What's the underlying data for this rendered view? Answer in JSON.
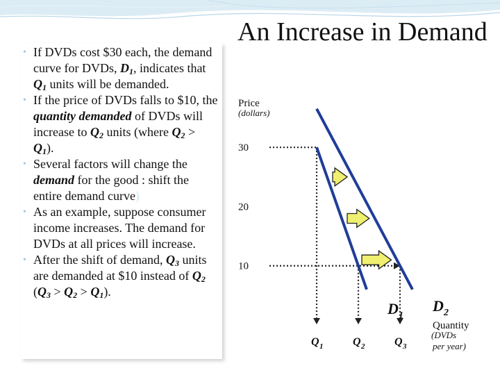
{
  "title": "An Increase in Demand",
  "bullets": [
    {
      "parts": [
        {
          "t": "If DVDs cost $30 each, the demand curve for DVDs, "
        },
        {
          "t": "D",
          "i": true,
          "b": true
        },
        {
          "t": "1",
          "sub": true,
          "i": true,
          "b": true
        },
        {
          "t": ", indicates that "
        },
        {
          "t": "Q",
          "i": true,
          "b": true
        },
        {
          "t": "1",
          "sub": true,
          "i": true,
          "b": true
        },
        {
          "t": " units will be demanded."
        }
      ]
    },
    {
      "parts": [
        {
          "t": "If the price of DVDs falls to $10, the "
        },
        {
          "t": "quantity demanded",
          "i": true,
          "b": true
        },
        {
          "t": " of DVDs will increase to "
        },
        {
          "t": "Q",
          "i": true,
          "b": true
        },
        {
          "t": "2",
          "sub": true,
          "i": true,
          "b": true
        },
        {
          "t": " units (where "
        },
        {
          "t": "Q",
          "i": true,
          "b": true
        },
        {
          "t": "2",
          "sub": true,
          "i": true,
          "b": true
        },
        {
          "t": " > "
        },
        {
          "t": "Q",
          "i": true,
          "b": true
        },
        {
          "t": "1",
          "sub": true,
          "i": true,
          "b": true
        },
        {
          "t": ")."
        }
      ]
    },
    {
      "parts": [
        {
          "t": "Several factors will change the "
        },
        {
          "t": "demand",
          "i": true,
          "b": true
        },
        {
          "t": " for the good : shift the entire demand curve"
        },
        {
          "t": ")",
          "ghost": true
        }
      ]
    },
    {
      "parts": [
        {
          "t": "As an example, suppose consumer income increases. The demand for DVDs at all prices will increase."
        }
      ]
    },
    {
      "parts": [
        {
          "t": "After the shift of demand, "
        },
        {
          "t": "Q",
          "i": true,
          "b": true
        },
        {
          "t": "3",
          "sub": true,
          "i": true,
          "b": true
        },
        {
          "t": " units are demanded at $10 instead of "
        },
        {
          "t": "Q",
          "i": true,
          "b": true
        },
        {
          "t": "2",
          "sub": true,
          "i": true,
          "b": true
        },
        {
          "t": " ("
        },
        {
          "t": "Q",
          "i": true,
          "b": true
        },
        {
          "t": "3",
          "sub": true,
          "i": true,
          "b": true
        },
        {
          "t": " > "
        },
        {
          "t": "Q",
          "i": true,
          "b": true
        },
        {
          "t": "2",
          "sub": true,
          "i": true,
          "b": true
        },
        {
          "t": " > "
        },
        {
          "t": "Q",
          "i": true,
          "b": true
        },
        {
          "t": "1",
          "sub": true,
          "i": true,
          "b": true
        },
        {
          "t": ")."
        }
      ]
    }
  ],
  "chart_data": {
    "type": "line",
    "ylabel": "Price",
    "ylabel_unit": "(dollars)",
    "xlabel": "Quantity",
    "xlabel_unit_lines": [
      "(DVDs",
      "per year)"
    ],
    "y_ticks": [
      "30",
      "20",
      "10"
    ],
    "y_tick_values": [
      30,
      20,
      10
    ],
    "x_ticks": [
      {
        "base": "Q",
        "sub": "1",
        "value": 1
      },
      {
        "base": "Q",
        "sub": "2",
        "value": 2
      },
      {
        "base": "Q",
        "sub": "3",
        "value": 3
      }
    ],
    "ylim": [
      0,
      36
    ],
    "xlim": [
      0,
      4.4
    ],
    "series": [
      {
        "name": "D",
        "sub": "1",
        "points": [
          [
            1,
            30
          ],
          [
            2,
            10
          ],
          [
            2.2,
            6
          ]
        ]
      },
      {
        "name": "D",
        "sub": "2",
        "points": [
          [
            1,
            36.5
          ],
          [
            3,
            10
          ],
          [
            3.3,
            6
          ]
        ]
      }
    ],
    "reference_lines": {
      "horizontal": [
        {
          "y": 30,
          "x_to": 1
        },
        {
          "y": 10,
          "x_to": 3
        }
      ],
      "vertical": [
        {
          "x": 1,
          "y_from": 30
        },
        {
          "x": 2,
          "y_from": 10
        },
        {
          "x": 3,
          "y_from": 10
        }
      ]
    },
    "shift_arrows_y": [
      25,
      18,
      11
    ],
    "colors": {
      "curve": "#1f3d99",
      "arrow_fill": "#f0f070",
      "arrow_stroke": "#222222"
    }
  }
}
